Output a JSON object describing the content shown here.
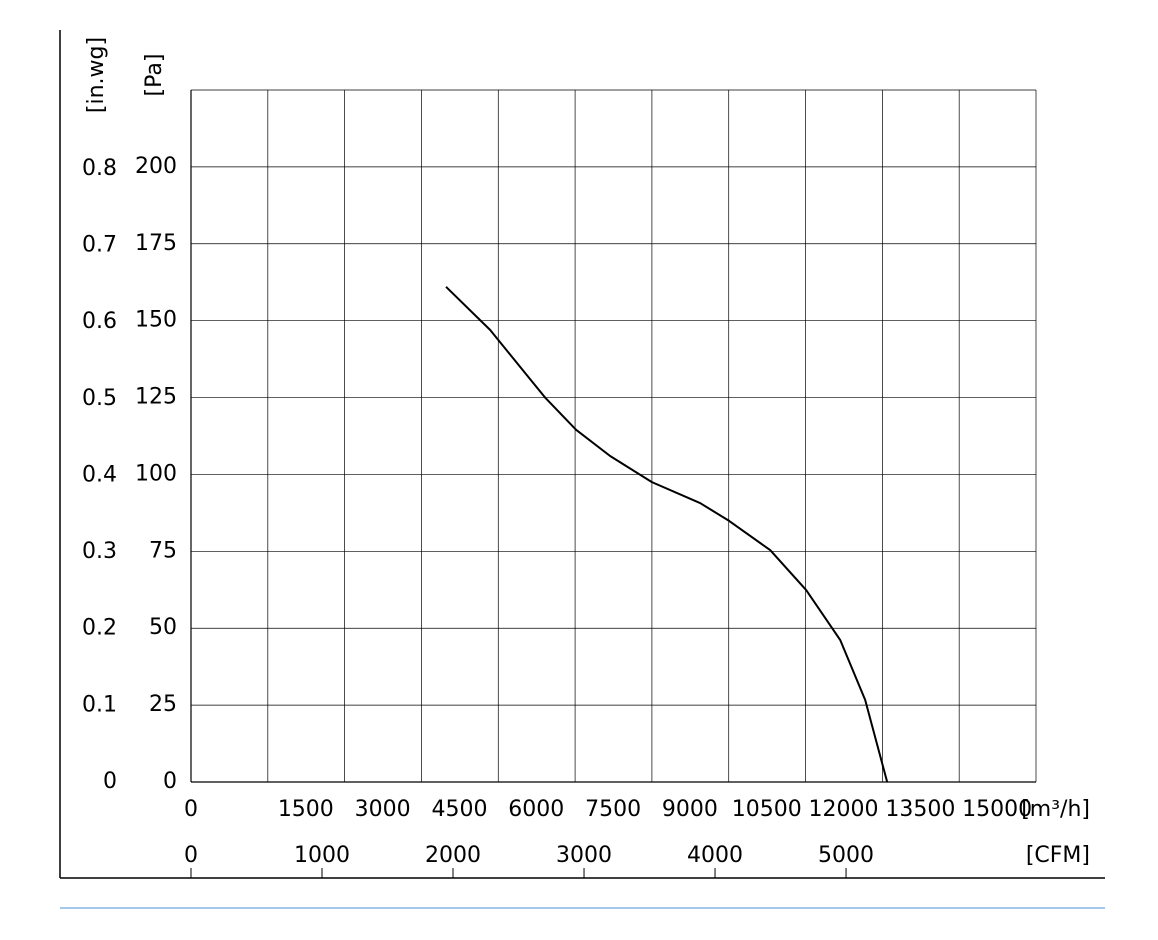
{
  "chart_data": {
    "type": "line",
    "y_label": "[Pa]",
    "y2_label": "[in.wg]",
    "x_label": "[m³/h]",
    "x2_label": "[CFM]",
    "x": [
      4980,
      5840,
      6914,
      7520,
      8184,
      9000,
      9941,
      10508,
      11309,
      12012,
      12676,
      13164,
      13594
    ],
    "series": [
      {
        "color": "#000000",
        "values": [
          161,
          147,
          125,
          114.5,
          106,
          97.5,
          90.7,
          84.9,
          75.4,
          62.4,
          46.2,
          26.7,
          0
        ]
      }
    ],
    "xlim": [
      0,
      16500
    ],
    "xticks": [
      0,
      1500,
      3000,
      4500,
      6000,
      7500,
      9000,
      10500,
      12000,
      13500,
      15000
    ],
    "x2lim": [
      0,
      6450
    ],
    "x2ticks": [
      0,
      1000,
      2000,
      3000,
      4000,
      5000
    ],
    "ylim": [
      0,
      225
    ],
    "yticks": [
      0,
      25,
      50,
      75,
      100,
      125,
      150,
      175,
      200
    ],
    "y2lim": [
      0,
      0.903
    ],
    "y2ticks": [
      0,
      0.1,
      0.2,
      0.3,
      0.4,
      0.5,
      0.6,
      0.7,
      0.8
    ],
    "grid": true
  }
}
